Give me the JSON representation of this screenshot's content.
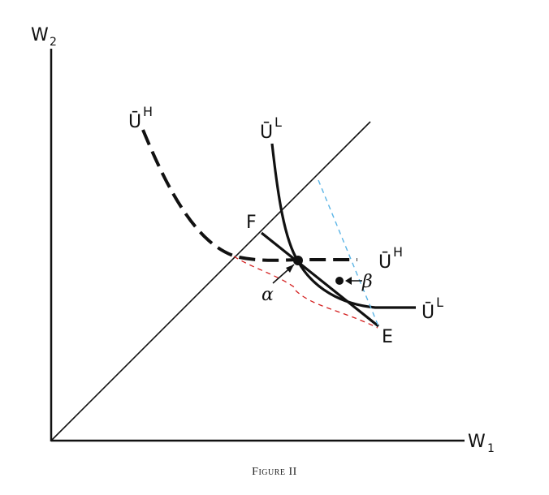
{
  "axes": {
    "y_label": "W",
    "y_subscript": "2",
    "x_label": "W",
    "x_subscript": "1"
  },
  "curves": {
    "uh_label": "Ū",
    "uh_sup": "H",
    "ul_label": "Ū",
    "ul_sup": "L"
  },
  "points": {
    "F": "F",
    "E": "E",
    "alpha": "α",
    "beta": "β"
  },
  "colors": {
    "ink": "#111111",
    "red_dashes": "#d42020",
    "blue_dashes": "#5ab4e6"
  },
  "caption": "Figure II"
}
